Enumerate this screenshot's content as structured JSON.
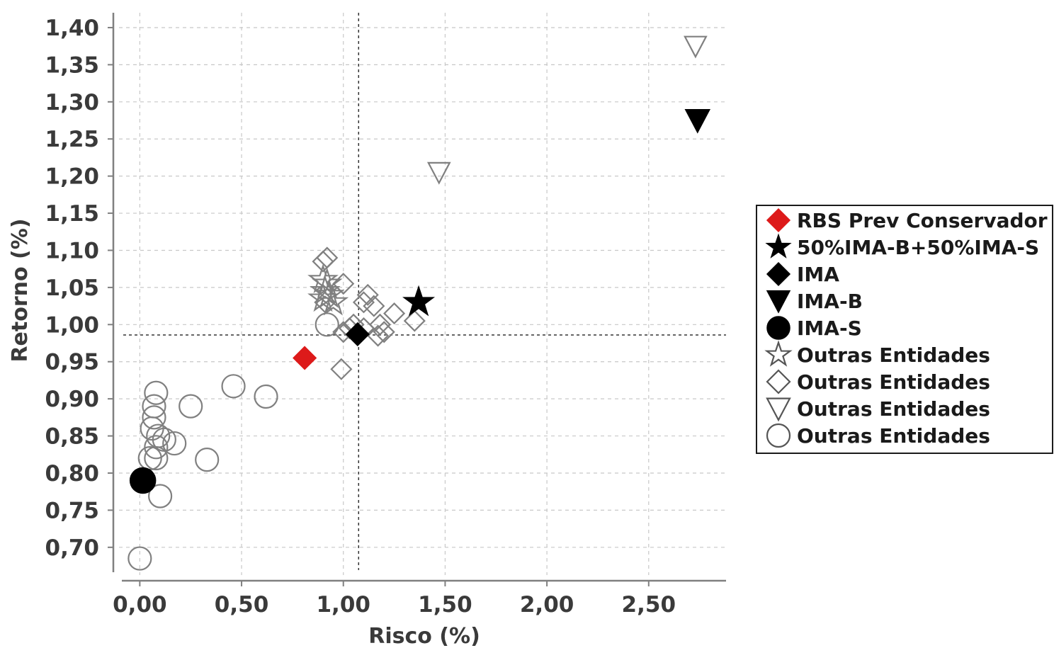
{
  "chart_data": {
    "type": "scatter",
    "title": "",
    "xlabel": "Risco (%)",
    "ylabel": "Retorno (%)",
    "xlim": [
      -0.13,
      2.88
    ],
    "ylim": [
      0.655,
      1.42
    ],
    "x_ticks": [
      "0,00",
      "0,50",
      "1,00",
      "1,50",
      "2,00",
      "2,50"
    ],
    "x_tick_values": [
      0,
      0.5,
      1.0,
      1.5,
      2.0,
      2.5
    ],
    "y_ticks": [
      "0,70",
      "0,75",
      "0,80",
      "0,85",
      "0,90",
      "0,95",
      "1,00",
      "1,05",
      "1,10",
      "1,15",
      "1,20",
      "1,25",
      "1,30",
      "1,35",
      "1,40"
    ],
    "y_tick_values": [
      0.7,
      0.75,
      0.8,
      0.85,
      0.9,
      0.95,
      1.0,
      1.05,
      1.1,
      1.15,
      1.2,
      1.25,
      1.3,
      1.35,
      1.4
    ],
    "grid": true,
    "reference_lines": {
      "x": 1.075,
      "y": 0.986
    },
    "legend_position": "right",
    "series": [
      {
        "name": "RBS Prev Conservador",
        "marker": "diamond",
        "filled": true,
        "color": "#dd1a1a",
        "points": [
          [
            0.81,
            0.955
          ]
        ]
      },
      {
        "name": "50%IMA-B+50%IMA-S",
        "marker": "star",
        "filled": true,
        "color": "#000000",
        "points": [
          [
            1.37,
            1.03
          ]
        ]
      },
      {
        "name": "IMA",
        "marker": "diamond",
        "filled": true,
        "color": "#000000",
        "points": [
          [
            1.07,
            0.987
          ]
        ]
      },
      {
        "name": "IMA-B",
        "marker": "triangle-down",
        "filled": true,
        "color": "#000000",
        "points": [
          [
            2.74,
            1.275
          ]
        ]
      },
      {
        "name": "IMA-S",
        "marker": "circle",
        "filled": true,
        "color": "#000000",
        "points": [
          [
            0.015,
            0.79
          ]
        ]
      },
      {
        "name": "Outras Entidades",
        "marker": "star",
        "filled": false,
        "color": "#808080",
        "points": [
          [
            0.9,
            1.06
          ],
          [
            0.92,
            1.055
          ],
          [
            0.91,
            1.045
          ],
          [
            0.93,
            1.04
          ],
          [
            0.9,
            1.035
          ],
          [
            0.95,
            1.03
          ]
        ]
      },
      {
        "name": "Outras Entidades",
        "marker": "diamond",
        "filled": false,
        "color": "#808080",
        "points": [
          [
            0.9,
            1.085
          ],
          [
            0.92,
            1.09
          ],
          [
            0.91,
            1.03
          ],
          [
            1.0,
            1.055
          ],
          [
            0.99,
            0.94
          ],
          [
            1.1,
            1.03
          ],
          [
            1.12,
            1.04
          ],
          [
            1.15,
            1.025
          ],
          [
            1.18,
            1.0
          ],
          [
            1.2,
            0.99
          ],
          [
            1.25,
            1.015
          ],
          [
            1.35,
            1.005
          ],
          [
            1.05,
            1.0
          ],
          [
            1.1,
            0.995
          ],
          [
            1.0,
            0.99
          ],
          [
            1.03,
            0.995
          ],
          [
            1.17,
            0.985
          ]
        ]
      },
      {
        "name": "Outras Entidades",
        "marker": "triangle-down",
        "filled": false,
        "color": "#808080",
        "points": [
          [
            2.73,
            1.375
          ],
          [
            1.47,
            1.205
          ]
        ]
      },
      {
        "name": "Outras Entidades",
        "marker": "circle",
        "filled": false,
        "color": "#808080",
        "points": [
          [
            0.92,
            1.0
          ],
          [
            0.1,
            0.769
          ],
          [
            0.0,
            0.685
          ],
          [
            0.08,
            0.908
          ],
          [
            0.07,
            0.89
          ],
          [
            0.07,
            0.875
          ],
          [
            0.06,
            0.86
          ],
          [
            0.09,
            0.85
          ],
          [
            0.12,
            0.845
          ],
          [
            0.17,
            0.84
          ],
          [
            0.08,
            0.835
          ],
          [
            0.05,
            0.82
          ],
          [
            0.08,
            0.82
          ],
          [
            0.25,
            0.89
          ],
          [
            0.46,
            0.917
          ],
          [
            0.62,
            0.903
          ],
          [
            0.33,
            0.818
          ]
        ]
      }
    ]
  }
}
